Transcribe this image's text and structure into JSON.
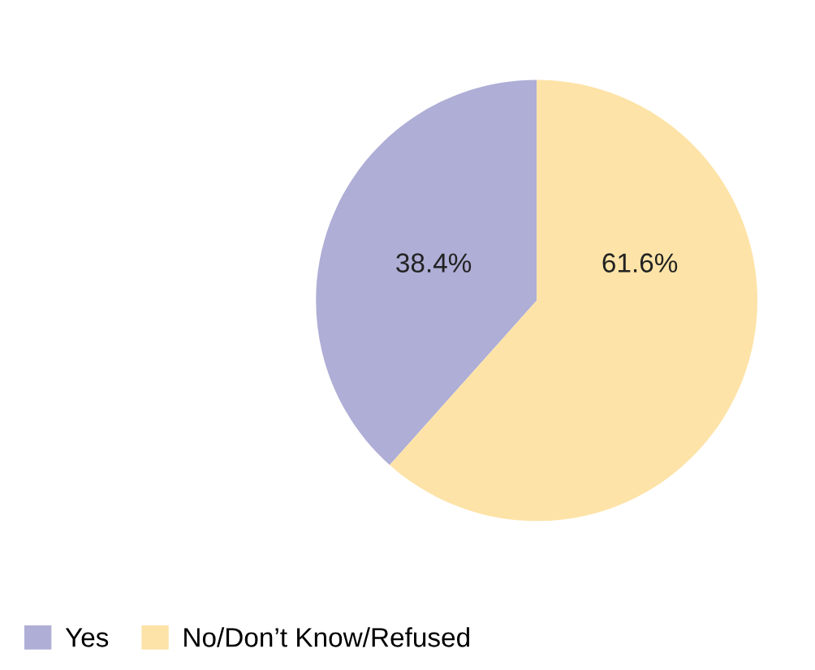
{
  "chart_data": {
    "type": "pie",
    "categories": [
      "Yes",
      "No/Don’t Know/Refused"
    ],
    "values": [
      38.4,
      61.6
    ],
    "colors": [
      "#aeaed6",
      "#fde3a7"
    ],
    "value_labels": [
      "38.4%",
      "61.6%"
    ],
    "legend": "bottom left"
  }
}
